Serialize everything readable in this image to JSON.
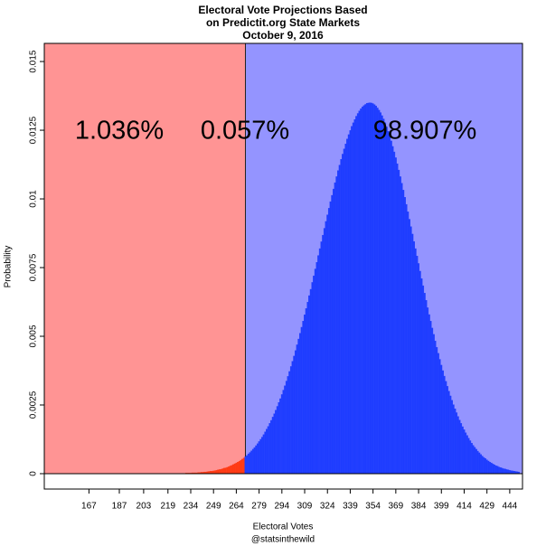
{
  "chart_data": {
    "type": "bar",
    "title": [
      "Electoral Vote Projections Based",
      "on Predictit.org State Markets",
      "October 9, 2016"
    ],
    "xlabel": "Electoral Votes",
    "credit": "@statsinthewild",
    "ylabel": "Probability",
    "regions": [
      {
        "from": 137.6,
        "to": 270,
        "color": "#ff9494",
        "bar_color": "#ff3a14",
        "label": "1.036%"
      },
      {
        "from": 270,
        "to": 452.4,
        "color": "#9494ff",
        "bar_color": "#1f3dff",
        "label": "98.907%"
      }
    ],
    "tie_label": "0.057%",
    "xlim": [
      137.6,
      452.4
    ],
    "ylim": [
      -0.00056,
      0.01566
    ],
    "xticks": [
      167,
      187,
      203,
      219,
      234,
      249,
      264,
      279,
      294,
      309,
      324,
      339,
      354,
      369,
      384,
      399,
      414,
      429,
      444
    ],
    "yticks": [
      0,
      0.0025,
      0.005,
      0.0075,
      0.01,
      0.0125,
      0.015
    ],
    "x": [
      230,
      231,
      232,
      233,
      234,
      235,
      236,
      237,
      238,
      239,
      240,
      241,
      242,
      243,
      244,
      245,
      246,
      247,
      248,
      249,
      250,
      251,
      252,
      253,
      254,
      255,
      256,
      257,
      258,
      259,
      260,
      261,
      262,
      263,
      264,
      265,
      266,
      267,
      268,
      269,
      270,
      271,
      272,
      273,
      274,
      275,
      276,
      277,
      278,
      279,
      280,
      281,
      282,
      283,
      284,
      285,
      286,
      287,
      288,
      289,
      290,
      291,
      292,
      293,
      294,
      295,
      296,
      297,
      298,
      299,
      300,
      301,
      302,
      303,
      304,
      305,
      306,
      307,
      308,
      309,
      310,
      311,
      312,
      313,
      314,
      315,
      316,
      317,
      318,
      319,
      320,
      321,
      322,
      323,
      324,
      325,
      326,
      327,
      328,
      329,
      330,
      331,
      332,
      333,
      334,
      335,
      336,
      337,
      338,
      339,
      340,
      341,
      342,
      343,
      344,
      345,
      346,
      347,
      348,
      349,
      350,
      351,
      352,
      353,
      354,
      355,
      356,
      357,
      358,
      359,
      360,
      361,
      362,
      363,
      364,
      365,
      366,
      367,
      368,
      369,
      370,
      371,
      372,
      373,
      374,
      375,
      376,
      377,
      378,
      379,
      380,
      381,
      382,
      383,
      384,
      385,
      386,
      387,
      388,
      389,
      390,
      391,
      392,
      393,
      394,
      395,
      396,
      397,
      398,
      399,
      400,
      401,
      402,
      403,
      404,
      405,
      406,
      407,
      408,
      409,
      410,
      411,
      412,
      413,
      414,
      415,
      416,
      417,
      418,
      419,
      420,
      421,
      422,
      423,
      424,
      425,
      426,
      427,
      428,
      429,
      430,
      431,
      432,
      433,
      434,
      435,
      436,
      437,
      438,
      439,
      440,
      441,
      442,
      443,
      444,
      445,
      446,
      447,
      448,
      449,
      450
    ],
    "values": [
      1e-05,
      2e-05,
      2e-05,
      2e-05,
      2e-05,
      3e-05,
      3e-05,
      3e-05,
      3e-05,
      4e-05,
      4e-05,
      5e-05,
      5e-05,
      6e-05,
      6e-05,
      7e-05,
      8e-05,
      9e-05,
      9e-05,
      0.0001,
      0.00011,
      0.00012,
      0.00014,
      0.00015,
      0.00016,
      0.00018,
      0.0002,
      0.00021,
      0.00023,
      0.00025,
      0.00028,
      0.0003,
      0.00033,
      0.00036,
      0.00039,
      0.00042,
      0.00045,
      0.00049,
      0.00053,
      0.00057,
      0.00062,
      0.00066,
      0.00072,
      0.00077,
      0.00083,
      0.00089,
      0.00095,
      0.00102,
      0.00109,
      0.00117,
      0.00125,
      0.00133,
      0.00142,
      0.00152,
      0.00162,
      0.00172,
      0.00183,
      0.00194,
      0.00206,
      0.00218,
      0.00231,
      0.00245,
      0.00259,
      0.00273,
      0.00288,
      0.00304,
      0.0032,
      0.00337,
      0.00354,
      0.00372,
      0.0039,
      0.00409,
      0.00428,
      0.00448,
      0.00469,
      0.0049,
      0.00511,
      0.00533,
      0.00555,
      0.00578,
      0.00601,
      0.00624,
      0.00648,
      0.00671,
      0.00696,
      0.0072,
      0.00745,
      0.00769,
      0.00794,
      0.00819,
      0.00844,
      0.00868,
      0.00893,
      0.00918,
      0.00942,
      0.00966,
      0.0099,
      0.01013,
      0.01036,
      0.01059,
      0.01081,
      0.01103,
      0.01123,
      0.01144,
      0.01163,
      0.01182,
      0.012,
      0.01218,
      0.01234,
      0.01249,
      0.01264,
      0.01277,
      0.01289,
      0.01301,
      0.01311,
      0.0132,
      0.01328,
      0.01335,
      0.0134,
      0.01344,
      0.01348,
      0.01349,
      0.0135,
      0.01349,
      0.01347,
      0.01343,
      0.01338,
      0.01331,
      0.01323,
      0.01314,
      0.01303,
      0.01291,
      0.01277,
      0.01262,
      0.01246,
      0.01229,
      0.01211,
      0.01191,
      0.01171,
      0.0115,
      0.01128,
      0.01105,
      0.01081,
      0.01057,
      0.01032,
      0.01006,
      0.0098,
      0.00953,
      0.00926,
      0.00899,
      0.00872,
      0.00845,
      0.00819,
      0.00792,
      0.00765,
      0.00737,
      0.0071,
      0.00684,
      0.00657,
      0.00631,
      0.00604,
      0.00579,
      0.00555,
      0.0053,
      0.00507,
      0.00483,
      0.0046,
      0.00438,
      0.00416,
      0.00395,
      0.00375,
      0.00355,
      0.00336,
      0.00318,
      0.003,
      0.00283,
      0.00267,
      0.00251,
      0.00236,
      0.00222,
      0.00208,
      0.00195,
      0.00183,
      0.00171,
      0.0016,
      0.00149,
      0.00139,
      0.00129,
      0.0012,
      0.00111,
      0.00103,
      0.00096,
      0.00089,
      0.00082,
      0.00076,
      0.0007,
      0.00064,
      0.00059,
      0.00055,
      0.0005,
      0.00046,
      0.00042,
      0.00039,
      0.00035,
      0.00032,
      0.00029,
      0.00027,
      0.00024,
      0.00022,
      0.0002,
      0.00018,
      0.00017,
      0.00015,
      0.00014,
      0.00012,
      0.00011,
      0.0001,
      9e-05,
      8e-05,
      7e-05,
      6e-05
    ]
  }
}
